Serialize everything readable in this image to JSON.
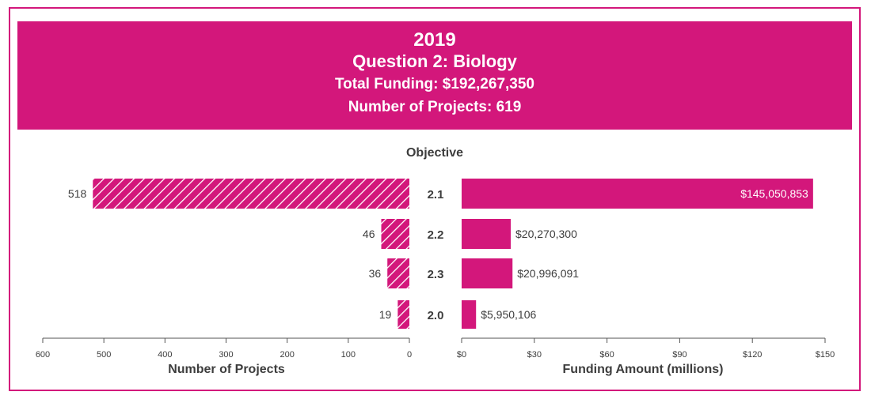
{
  "header": {
    "year": "2019",
    "subtitle": "Question 2: Biology",
    "total_funding": "Total Funding: $192,267,350",
    "num_projects": "Number of Projects: 619"
  },
  "colors": {
    "accent": "#d3177b",
    "text": "#3d3d3d",
    "axis": "#555555"
  },
  "chart_data": {
    "type": "bar",
    "orientation": "horizontal",
    "category_title": "Objective",
    "categories": [
      "2.1",
      "2.2",
      "2.3",
      "2.0"
    ],
    "series": [
      {
        "name": "Number of Projects",
        "values": [
          518,
          46,
          36,
          19
        ],
        "value_labels": [
          "518",
          "46",
          "36",
          "19"
        ],
        "pattern": "hatched",
        "direction": "left",
        "xlabel": "Number of Projects",
        "xlim": [
          0,
          600
        ],
        "ticks": [
          600,
          500,
          400,
          300,
          200,
          100,
          0
        ],
        "tick_labels": [
          "600",
          "500",
          "400",
          "300",
          "200",
          "100",
          "0"
        ]
      },
      {
        "name": "Funding Amount (millions)",
        "values": [
          145.050853,
          20.2703,
          20.996091,
          5.950106
        ],
        "value_labels": [
          "$145,050,853",
          "$20,270,300",
          "$20,996,091",
          "$5,950,106"
        ],
        "pattern": "solid",
        "direction": "right",
        "xlabel": "Funding Amount (millions)",
        "xlim": [
          0,
          150
        ],
        "ticks": [
          0,
          30,
          60,
          90,
          120,
          150
        ],
        "tick_labels": [
          "$0",
          "$30",
          "$60",
          "$90",
          "$120",
          "$150"
        ]
      }
    ],
    "legend": "none",
    "grid": false
  }
}
